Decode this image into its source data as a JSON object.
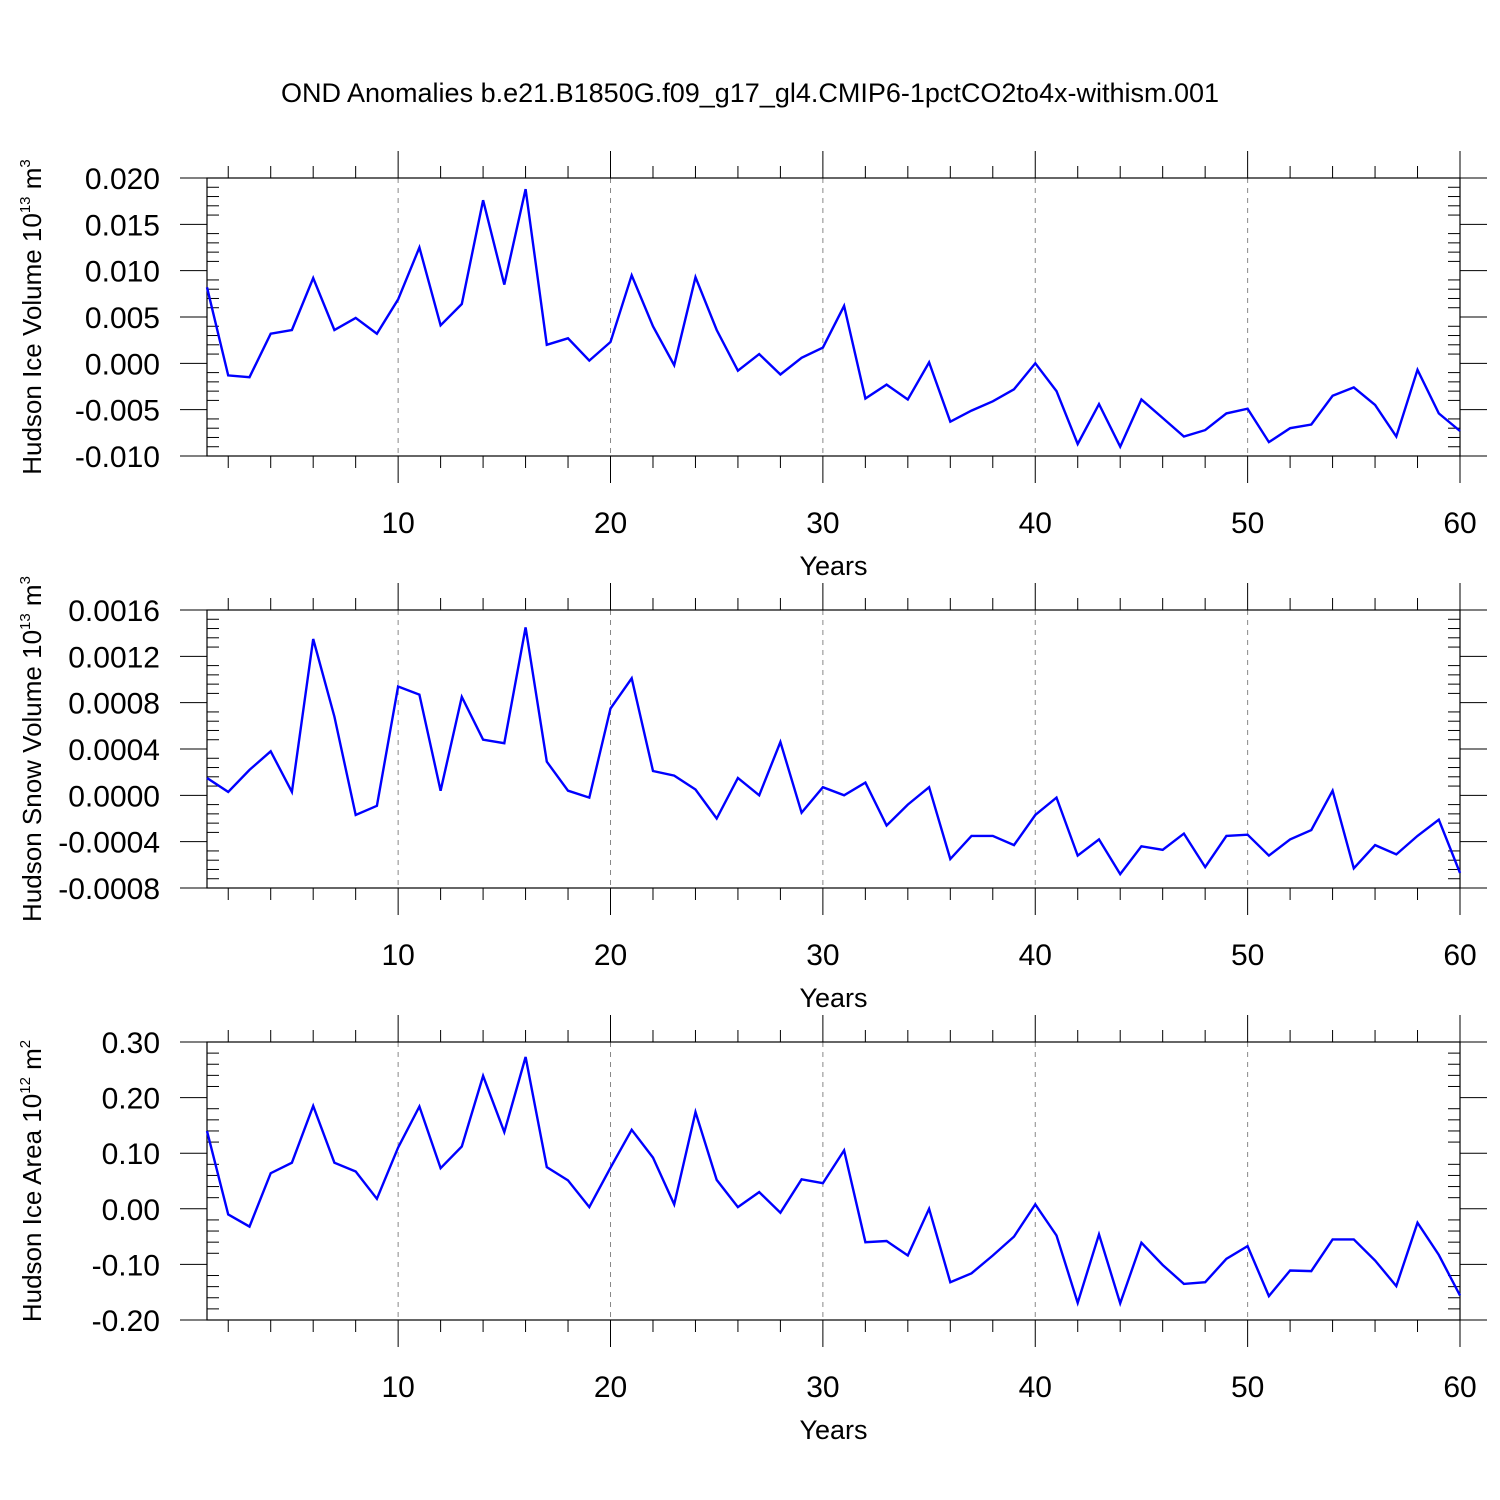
{
  "title": "OND Anomalies b.e21.B1850G.f09_g17_gl4.CMIP6-1pctCO2to4x-withism.001",
  "colors": {
    "line": "#0000ff",
    "axis": "#000000",
    "grid": "#888888"
  },
  "chart_data": [
    {
      "type": "line",
      "ylabel": "Hudson Ice Volume 10",
      "ylabel_exp": "13",
      "ylabel_unit": " m",
      "ylabel_unit_exp": "3",
      "xlabel": "Years",
      "xlim": [
        1,
        60
      ],
      "ylim": [
        -0.01,
        0.02
      ],
      "x_ticks": [
        "10",
        "20",
        "30",
        "40",
        "50",
        "60"
      ],
      "y_ticks": [
        "0.020",
        "0.015",
        "0.010",
        "0.005",
        "0.000",
        "-0.005",
        "-0.010"
      ],
      "grid": "vertical dashed at major x ticks",
      "series": [
        {
          "x": [
            1,
            2,
            3,
            4,
            5,
            6,
            7,
            8,
            9,
            10,
            11,
            12,
            13,
            14,
            15,
            16,
            17,
            18,
            19,
            20,
            21,
            22,
            23,
            24,
            25,
            26,
            27,
            28,
            29,
            30,
            31,
            32,
            33,
            34,
            35,
            36,
            37,
            38,
            39,
            40,
            41,
            42,
            43,
            44,
            45,
            46,
            47,
            48,
            49,
            50,
            51,
            52,
            53,
            54,
            55,
            56,
            57,
            58,
            59,
            60
          ],
          "y": [
            0.0082,
            -0.0013,
            -0.0015,
            0.0032,
            0.0036,
            0.0092,
            0.0036,
            0.0049,
            0.0032,
            0.0069,
            0.0125,
            0.0041,
            0.0064,
            0.0176,
            0.0085,
            0.0188,
            0.002,
            0.0027,
            0.0003,
            0.0023,
            0.0095,
            0.004,
            -0.0002,
            0.0093,
            0.0036,
            -0.0008,
            0.001,
            -0.0012,
            0.0006,
            0.0017,
            0.0062,
            -0.0038,
            -0.0023,
            -0.0039,
            0.0001,
            -0.0063,
            -0.0051,
            -0.0041,
            -0.0028,
            0.0,
            -0.003,
            -0.0087,
            -0.0044,
            -0.009,
            -0.0039,
            -0.0059,
            -0.0079,
            -0.0072,
            -0.0054,
            -0.0049,
            -0.0085,
            -0.007,
            -0.0066,
            -0.0035,
            -0.0026,
            -0.0045,
            -0.0079,
            -0.0007,
            -0.0054,
            -0.0073
          ]
        }
      ]
    },
    {
      "type": "line",
      "ylabel": "Hudson Snow Volume 10",
      "ylabel_exp": "13",
      "ylabel_unit": " m",
      "ylabel_unit_exp": "3",
      "xlabel": "Years",
      "xlim": [
        1,
        60
      ],
      "ylim": [
        -0.0008,
        0.0016
      ],
      "x_ticks": [
        "10",
        "20",
        "30",
        "40",
        "50",
        "60"
      ],
      "y_ticks": [
        "0.0016",
        "0.0012",
        "0.0008",
        "0.0004",
        "0.0000",
        "-0.0004",
        "-0.0008"
      ],
      "grid": "vertical dashed at major x ticks",
      "series": [
        {
          "x": [
            1,
            2,
            3,
            4,
            5,
            6,
            7,
            8,
            9,
            10,
            11,
            12,
            13,
            14,
            15,
            16,
            17,
            18,
            19,
            20,
            21,
            22,
            23,
            24,
            25,
            26,
            27,
            28,
            29,
            30,
            31,
            32,
            33,
            34,
            35,
            36,
            37,
            38,
            39,
            40,
            41,
            42,
            43,
            44,
            45,
            46,
            47,
            48,
            49,
            50,
            51,
            52,
            53,
            54,
            55,
            56,
            57,
            58,
            59,
            60
          ],
          "y": [
            0.00015,
            3e-05,
            0.00022,
            0.00038,
            3e-05,
            0.00135,
            0.00068,
            -0.00017,
            -9e-05,
            0.00094,
            0.00087,
            4e-05,
            0.00085,
            0.00048,
            0.00045,
            0.00145,
            0.00029,
            4e-05,
            -2e-05,
            0.00075,
            0.00101,
            0.00021,
            0.00017,
            5e-05,
            -0.0002,
            0.00015,
            0.0,
            0.00046,
            -0.00015,
            7e-05,
            0.0,
            0.00011,
            -0.00026,
            -8e-05,
            7e-05,
            -0.00055,
            -0.00035,
            -0.00035,
            -0.00043,
            -0.00017,
            -2e-05,
            -0.00052,
            -0.00038,
            -0.00068,
            -0.00044,
            -0.00047,
            -0.00033,
            -0.00062,
            -0.00035,
            -0.00034,
            -0.00052,
            -0.00038,
            -0.0003,
            4e-05,
            -0.00063,
            -0.00043,
            -0.00051,
            -0.00035,
            -0.00021,
            -0.00067
          ]
        }
      ]
    },
    {
      "type": "line",
      "ylabel": "Hudson Ice Area 10",
      "ylabel_exp": "12",
      "ylabel_unit": " m",
      "ylabel_unit_exp": "2",
      "xlabel": "Years",
      "xlim": [
        1,
        60
      ],
      "ylim": [
        -0.2,
        0.3
      ],
      "x_ticks": [
        "10",
        "20",
        "30",
        "40",
        "50",
        "60"
      ],
      "y_ticks": [
        "0.30",
        "0.20",
        "0.10",
        "0.00",
        "-0.10",
        "-0.20"
      ],
      "grid": "vertical dashed at major x ticks",
      "series": [
        {
          "x": [
            1,
            2,
            3,
            4,
            5,
            6,
            7,
            8,
            9,
            10,
            11,
            12,
            13,
            14,
            15,
            16,
            17,
            18,
            19,
            20,
            21,
            22,
            23,
            24,
            25,
            26,
            27,
            28,
            29,
            30,
            31,
            32,
            33,
            34,
            35,
            36,
            37,
            38,
            39,
            40,
            41,
            42,
            43,
            44,
            45,
            46,
            47,
            48,
            49,
            50,
            51,
            52,
            53,
            54,
            55,
            56,
            57,
            58,
            59,
            60
          ],
          "y": [
            0.14,
            -0.01,
            -0.032,
            0.064,
            0.083,
            0.185,
            0.083,
            0.067,
            0.018,
            0.11,
            0.184,
            0.073,
            0.112,
            0.239,
            0.138,
            0.273,
            0.075,
            0.051,
            0.003,
            0.074,
            0.142,
            0.092,
            0.008,
            0.174,
            0.052,
            0.003,
            0.03,
            -0.007,
            0.053,
            0.046,
            0.105,
            -0.06,
            -0.058,
            -0.084,
            0.0,
            -0.132,
            -0.116,
            -0.084,
            -0.05,
            0.008,
            -0.048,
            -0.169,
            -0.046,
            -0.17,
            -0.061,
            -0.101,
            -0.135,
            -0.132,
            -0.09,
            -0.067,
            -0.157,
            -0.111,
            -0.112,
            -0.055,
            -0.055,
            -0.093,
            -0.139,
            -0.025,
            -0.083,
            -0.156
          ]
        }
      ]
    }
  ]
}
